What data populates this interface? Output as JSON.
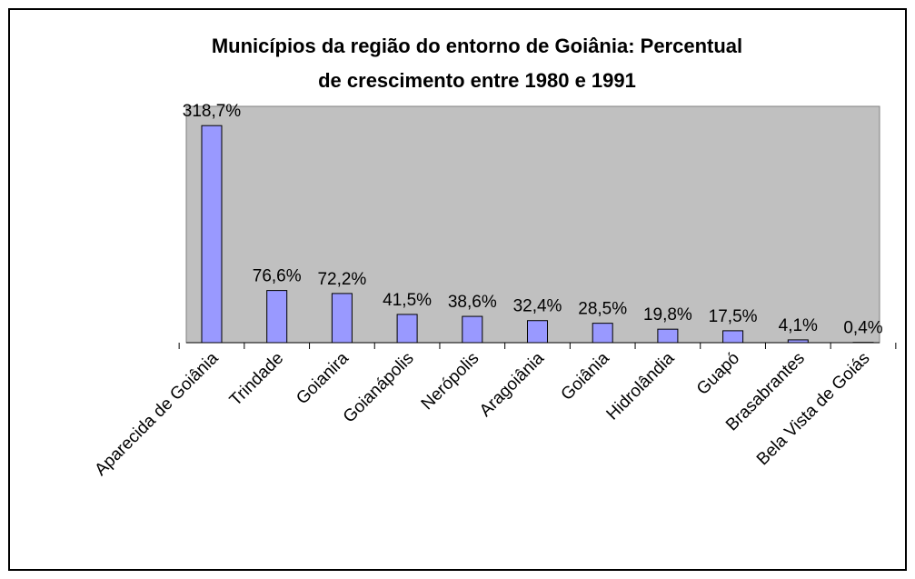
{
  "chart_data": {
    "type": "bar",
    "title": [
      "Municípios da região do entorno de Goiânia: Percentual",
      "de crescimento entre 1980 e 1991"
    ],
    "categories": [
      "Aparecida de Goiânia",
      "Trindade",
      "Goianira",
      "Goianápolis",
      "Nerópolis",
      "Aragoiânia",
      "Goiânia",
      "Hidrolândia",
      "Guapó",
      "Brasabrantes",
      "Bela Vista de Goiás"
    ],
    "values": [
      318.7,
      76.6,
      72.2,
      41.5,
      38.6,
      32.4,
      28.5,
      19.8,
      17.5,
      4.1,
      0.4
    ],
    "value_labels": [
      "318,7%",
      "76,6%",
      "72,2%",
      "41,5%",
      "38,6%",
      "32,4%",
      "28,5%",
      "19,8%",
      "17,5%",
      "4,1%",
      "0,4%"
    ],
    "color": "#9999ff",
    "ylim": [
      0,
      347
    ]
  }
}
